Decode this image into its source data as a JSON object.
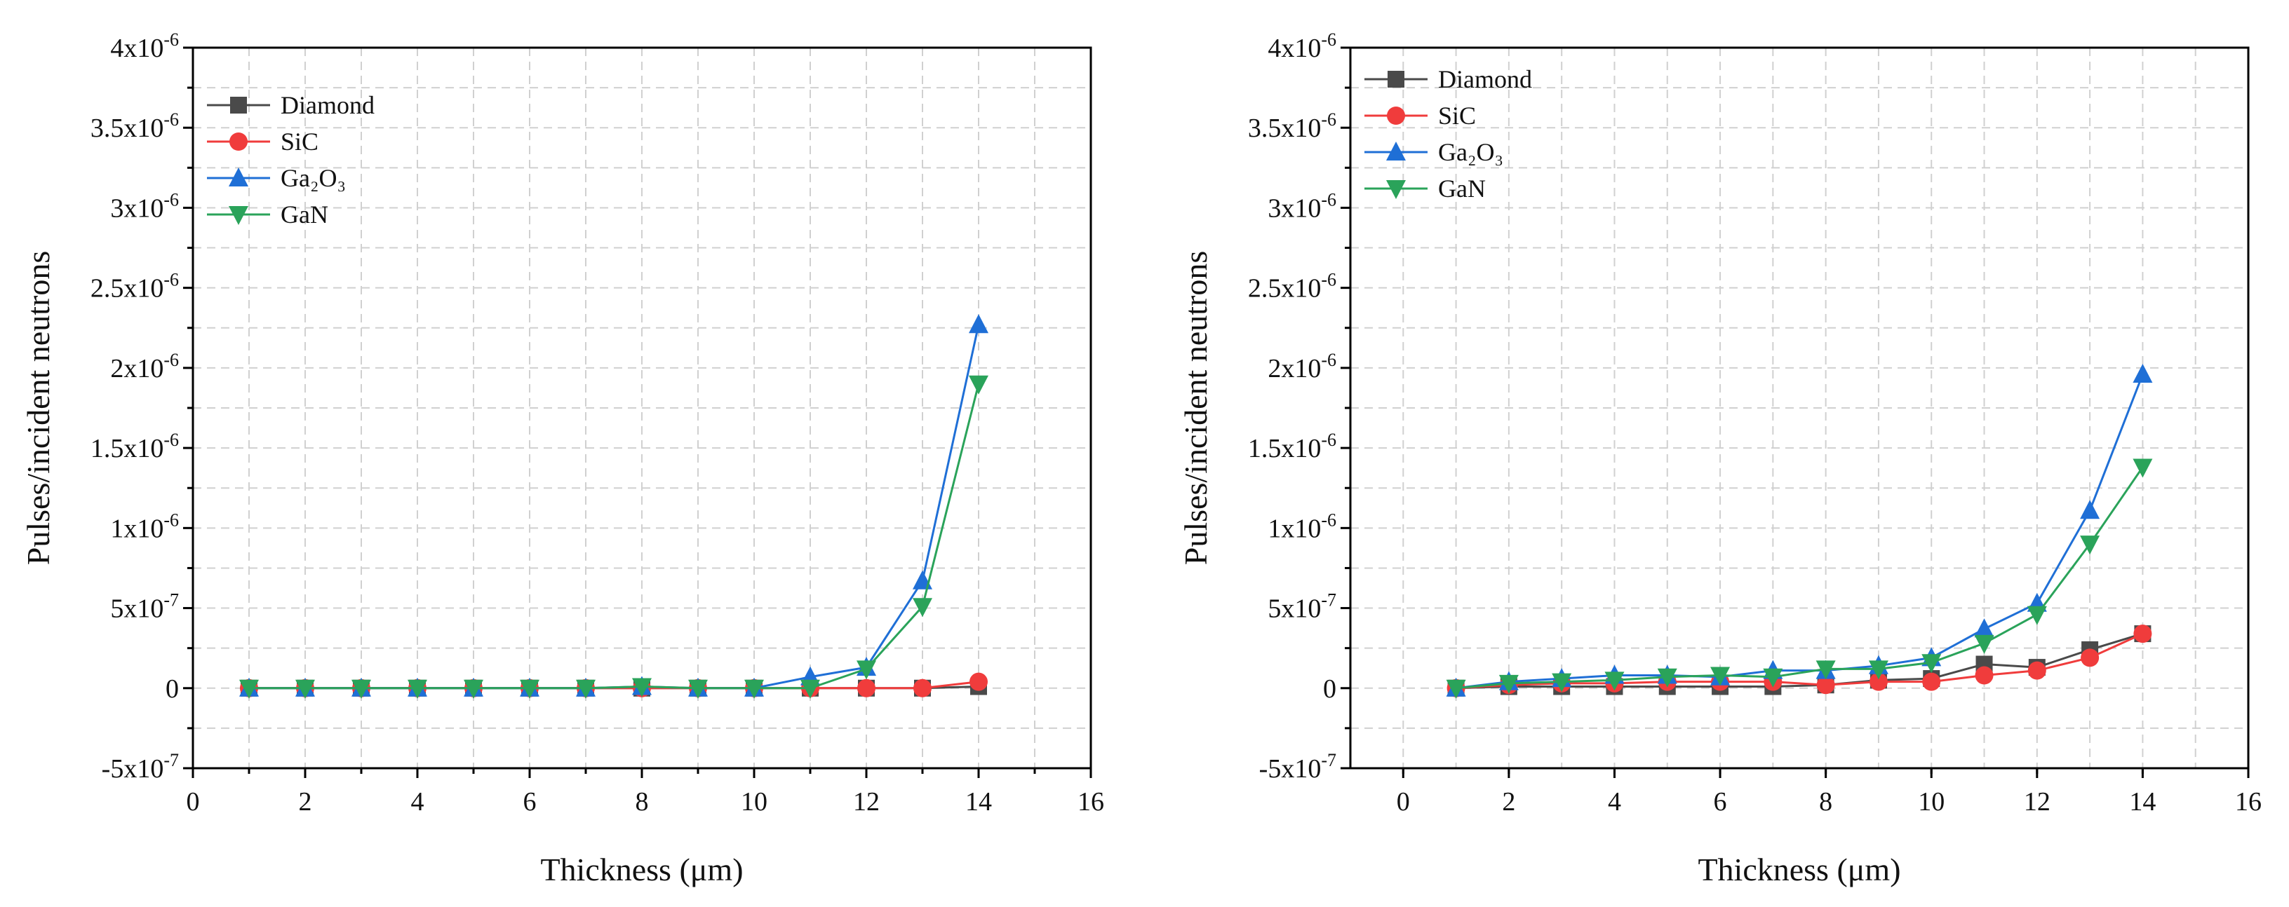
{
  "chart_data": [
    {
      "type": "line",
      "xlabel": "Thickness (μm)",
      "ylabel": "Pulses/incident neutrons",
      "xlim": [
        0,
        16
      ],
      "ylim": [
        -5e-07,
        4e-06
      ],
      "x_ticks": [
        "0",
        "2",
        "4",
        "6",
        "8",
        "10",
        "12",
        "14",
        "16"
      ],
      "y_ticks": [
        {
          "base": "-5x10",
          "exp": "-7",
          "value": -5e-07
        },
        {
          "base": "0",
          "exp": "",
          "value": 0
        },
        {
          "base": "5x10",
          "exp": "-7",
          "value": 5e-07
        },
        {
          "base": "1x10",
          "exp": "-6",
          "value": 1e-06
        },
        {
          "base": "1.5x10",
          "exp": "-6",
          "value": 1.5e-06
        },
        {
          "base": "2x10",
          "exp": "-6",
          "value": 2e-06
        },
        {
          "base": "2.5x10",
          "exp": "-6",
          "value": 2.5e-06
        },
        {
          "base": "3x10",
          "exp": "-6",
          "value": 3e-06
        },
        {
          "base": "3.5x10",
          "exp": "-6",
          "value": 3.5e-06
        },
        {
          "base": "4x10",
          "exp": "-6",
          "value": 4e-06
        }
      ],
      "grid": true,
      "legend": "top-left",
      "x": [
        1,
        2,
        3,
        4,
        5,
        6,
        7,
        8,
        9,
        10,
        11,
        12,
        13,
        14
      ],
      "series": [
        {
          "name": "Diamond",
          "color": "#4a4a4a",
          "marker": "square",
          "values": [
            0,
            0,
            0,
            0,
            0,
            0,
            0,
            0,
            0,
            0,
            0,
            0,
            0,
            1e-08
          ]
        },
        {
          "name": "SiC",
          "color": "#f03c3c",
          "marker": "circle",
          "values": [
            0,
            0,
            0,
            0,
            0,
            0,
            0,
            0,
            0,
            0,
            0,
            0,
            0,
            4e-08
          ]
        },
        {
          "name": "Ga₂O₃",
          "color": "#1f6fd6",
          "marker": "triangle-up",
          "values": [
            0,
            0,
            0,
            0,
            0,
            0,
            0,
            1e-08,
            0,
            0,
            7e-08,
            1.3e-07,
            6.7e-07,
            2.27e-06
          ]
        },
        {
          "name": "GaN",
          "color": "#2aa35a",
          "marker": "triangle-down",
          "values": [
            0,
            0,
            0,
            0,
            0,
            0,
            0,
            1e-08,
            0,
            0,
            0,
            1.2e-07,
            5.1e-07,
            1.9e-06
          ]
        }
      ]
    },
    {
      "type": "line",
      "xlabel": "Thickness (μm)",
      "ylabel": "Pulses/incident neutrons",
      "xlim": [
        -1,
        16
      ],
      "ylim": [
        -5e-07,
        4e-06
      ],
      "x_ticks": [
        "0",
        "2",
        "4",
        "6",
        "8",
        "10",
        "12",
        "14",
        "16"
      ],
      "y_ticks": [
        {
          "base": "-5x10",
          "exp": "-7",
          "value": -5e-07
        },
        {
          "base": "0",
          "exp": "",
          "value": 0
        },
        {
          "base": "5x10",
          "exp": "-7",
          "value": 5e-07
        },
        {
          "base": "1x10",
          "exp": "-6",
          "value": 1e-06
        },
        {
          "base": "1.5x10",
          "exp": "-6",
          "value": 1.5e-06
        },
        {
          "base": "2x10",
          "exp": "-6",
          "value": 2e-06
        },
        {
          "base": "2.5x10",
          "exp": "-6",
          "value": 2.5e-06
        },
        {
          "base": "3x10",
          "exp": "-6",
          "value": 3e-06
        },
        {
          "base": "3.5x10",
          "exp": "-6",
          "value": 3.5e-06
        },
        {
          "base": "4x10",
          "exp": "-6",
          "value": 4e-06
        }
      ],
      "grid": true,
      "legend": "top-left",
      "x": [
        1,
        2,
        3,
        4,
        5,
        6,
        7,
        8,
        9,
        10,
        11,
        12,
        13,
        14
      ],
      "series": [
        {
          "name": "Diamond",
          "color": "#4a4a4a",
          "marker": "square",
          "values": [
            0,
            1e-08,
            1e-08,
            1e-08,
            1e-08,
            1e-08,
            1e-08,
            2e-08,
            5e-08,
            6e-08,
            1.5e-07,
            1.3e-07,
            2.4e-07,
            3.4e-07
          ]
        },
        {
          "name": "SiC",
          "color": "#f03c3c",
          "marker": "circle",
          "values": [
            0,
            2e-08,
            3e-08,
            3e-08,
            4e-08,
            4e-08,
            4e-08,
            2e-08,
            4e-08,
            4e-08,
            8e-08,
            1.1e-07,
            1.9e-07,
            3.4e-07
          ]
        },
        {
          "name": "Ga₂O₃",
          "color": "#1f6fd6",
          "marker": "triangle-up",
          "values": [
            0,
            4e-08,
            6e-08,
            8e-08,
            8e-08,
            7e-08,
            1.1e-07,
            1.1e-07,
            1.4e-07,
            1.9e-07,
            3.7e-07,
            5.3e-07,
            1.11e-06,
            1.96e-06
          ]
        },
        {
          "name": "GaN",
          "color": "#2aa35a",
          "marker": "triangle-down",
          "values": [
            0,
            3e-08,
            4e-08,
            5e-08,
            7e-08,
            8e-08,
            7e-08,
            1.2e-07,
            1.2e-07,
            1.6e-07,
            2.8e-07,
            4.6e-07,
            9e-07,
            1.38e-06
          ]
        }
      ]
    }
  ]
}
